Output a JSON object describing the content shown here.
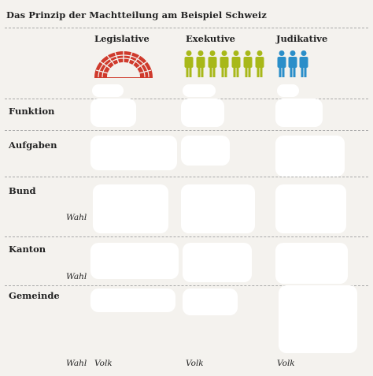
{
  "title": "Das Prinzip der Machtteilung am Beispiel Schweiz",
  "columns": [
    {
      "label": "Legislative",
      "icon": "parliament-icon",
      "color": "#cf3a2c"
    },
    {
      "label": "Exekutive",
      "icon": "people-group-icon",
      "color": "#a8b819",
      "people": 7
    },
    {
      "label": "Judikative",
      "icon": "people-group-icon",
      "color": "#2a8ec9",
      "people": 3
    }
  ],
  "rows": {
    "funktion": "Funktion",
    "aufgaben": "Aufgaben",
    "bund": "Bund",
    "kanton": "Kanton",
    "gemeinde": "Gemeinde"
  },
  "wahl_label": "Wahl",
  "volk_label": "Volk"
}
